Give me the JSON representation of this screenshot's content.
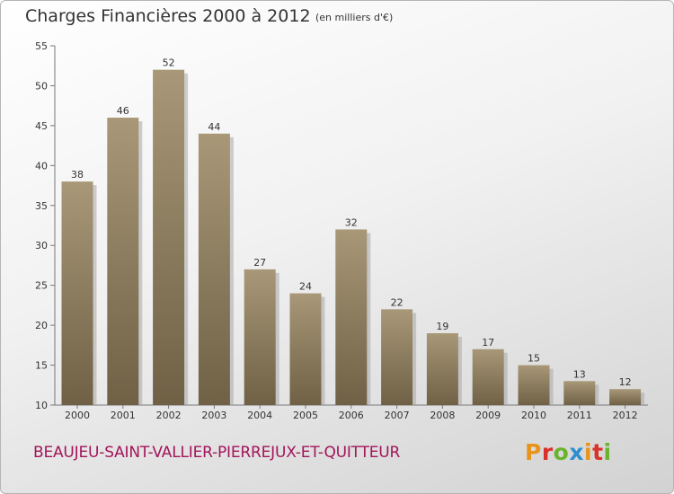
{
  "header": {
    "title": "Charges Financières 2000 à 2012",
    "unit": "(en milliers d'€)"
  },
  "footer": {
    "commune": "BEAUJEU-SAINT-VALLIER-PIERREJUX-ET-QUITTEUR",
    "logo": "Proxiti"
  },
  "colors": {
    "bar_top": "#a89878",
    "bar_bottom": "#706045",
    "bar_shadow": "#a8a8a8",
    "commune_text": "#a3145a",
    "logo_letters": [
      "#e8941a",
      "#d9322a",
      "#6ab42d",
      "#2e8fd0",
      "#e8941a",
      "#d9322a",
      "#6ab42d"
    ]
  },
  "chart_data": {
    "type": "bar",
    "title": "Charges Financières 2000 à 2012",
    "subtitle": "(en milliers d'€)",
    "categories": [
      "2000",
      "2001",
      "2002",
      "2003",
      "2004",
      "2005",
      "2006",
      "2007",
      "2008",
      "2009",
      "2010",
      "2011",
      "2012"
    ],
    "values": [
      38,
      46,
      52,
      44,
      27,
      24,
      32,
      22,
      19,
      17,
      15,
      13,
      12
    ],
    "ylim": [
      10,
      55
    ],
    "yticks": [
      10,
      15,
      20,
      25,
      30,
      35,
      40,
      45,
      50,
      55
    ],
    "grid": false,
    "legend": "none"
  }
}
